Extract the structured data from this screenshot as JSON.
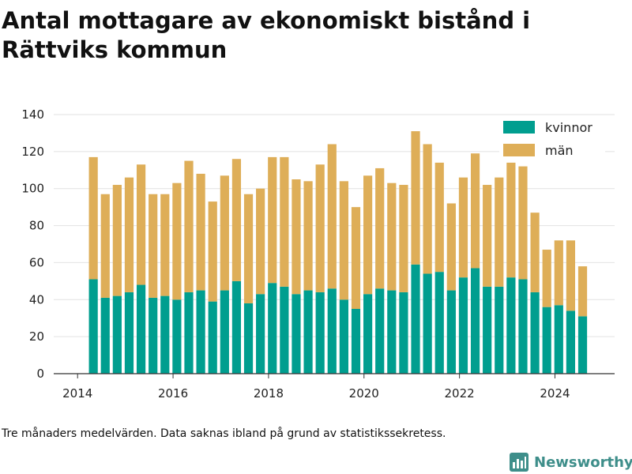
{
  "chart_data": {
    "type": "bar",
    "stacked": true,
    "title": "Antal mottagare av ekonomiskt bistånd i Rättviks kommun",
    "xlabel": "",
    "ylabel": "",
    "ylim": [
      0,
      140
    ],
    "y_ticks": [
      0,
      20,
      40,
      60,
      80,
      100,
      120,
      140
    ],
    "x_ticks": [
      2014,
      2016,
      2018,
      2020,
      2022,
      2024
    ],
    "xlim": [
      2013.5,
      2025.25
    ],
    "grid": true,
    "legend_position": "top-right",
    "x": [
      2014.33,
      2014.58,
      2014.83,
      2015.08,
      2015.33,
      2015.58,
      2015.83,
      2016.08,
      2016.33,
      2016.58,
      2016.83,
      2017.08,
      2017.33,
      2017.58,
      2017.83,
      2018.08,
      2018.33,
      2018.58,
      2018.83,
      2019.08,
      2019.33,
      2019.58,
      2019.83,
      2020.08,
      2020.33,
      2020.58,
      2020.83,
      2021.08,
      2021.33,
      2021.58,
      2021.83,
      2022.08,
      2022.33,
      2022.58,
      2022.83,
      2023.08,
      2023.33,
      2023.58,
      2023.83,
      2024.08,
      2024.33,
      2024.58
    ],
    "series": [
      {
        "name": "kvinnor",
        "color": "#009e8f",
        "values": [
          51,
          41,
          42,
          44,
          48,
          41,
          42,
          40,
          44,
          45,
          39,
          45,
          50,
          38,
          43,
          49,
          47,
          43,
          45,
          44,
          46,
          40,
          35,
          43,
          46,
          45,
          44,
          59,
          54,
          55,
          45,
          52,
          57,
          47,
          47,
          52,
          51,
          44,
          36,
          37,
          34,
          31
        ]
      },
      {
        "name": "män",
        "color": "#deae58",
        "values": [
          66,
          56,
          60,
          62,
          65,
          56,
          55,
          63,
          71,
          63,
          54,
          62,
          66,
          59,
          57,
          68,
          70,
          62,
          59,
          69,
          78,
          64,
          55,
          64,
          65,
          58,
          58,
          72,
          70,
          59,
          47,
          54,
          62,
          55,
          59,
          62,
          61,
          43,
          31,
          35,
          38,
          27
        ]
      }
    ]
  },
  "footnote": "Tre månaders medelvärden. Data saknas ibland på grund av statistikssekretess.",
  "brand": {
    "name": "Newsworthy",
    "icon": "newsworthy-logo-icon",
    "color": "#3e8e8a"
  }
}
